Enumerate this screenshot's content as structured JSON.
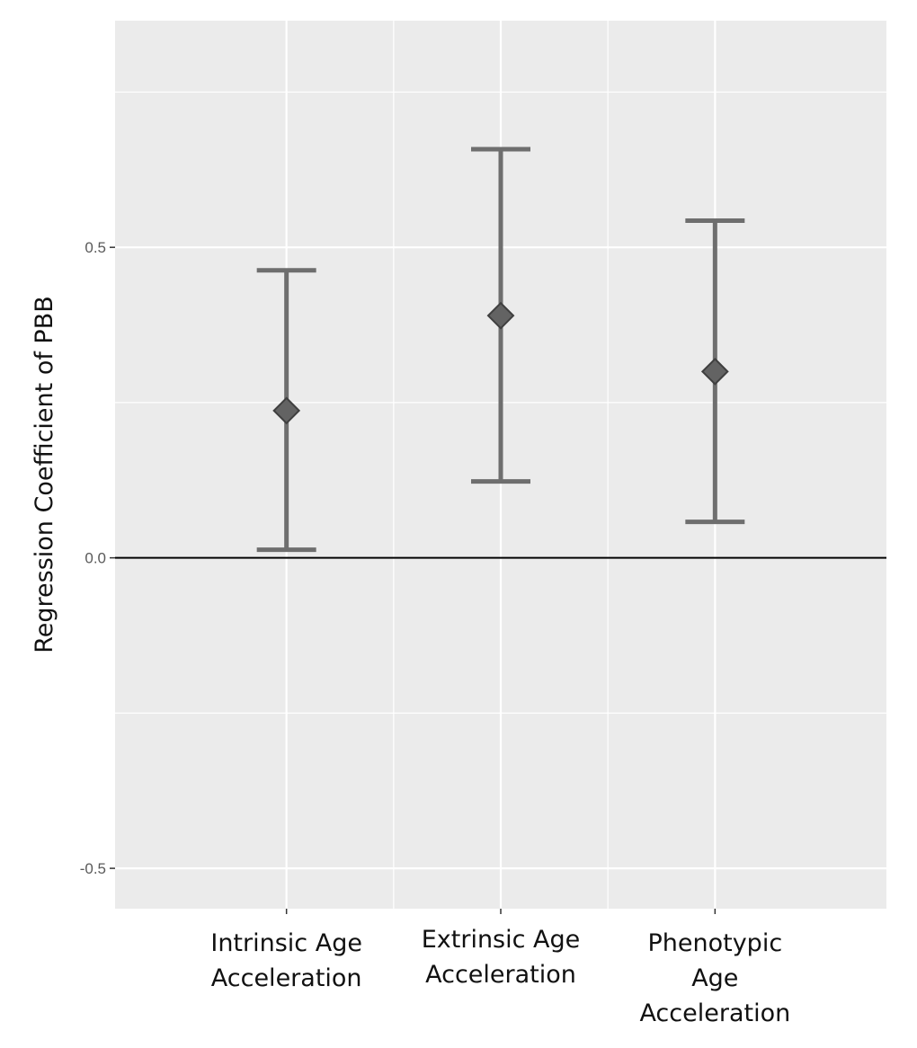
{
  "chart_data": {
    "type": "errorbar",
    "title": "",
    "xlabel": "",
    "ylabel": "Regression Coefficient of PBB",
    "ylim": [
      -0.565,
      0.865
    ],
    "yticks": [
      {
        "value": -0.5,
        "label": "-0.5"
      },
      {
        "value": 0.0,
        "label": "0.0"
      },
      {
        "value": 0.5,
        "label": "0.5"
      }
    ],
    "reference_line": 0.0,
    "grid": true,
    "categories": [
      {
        "lines": [
          "Intrinsic Age",
          "Acceleration"
        ]
      },
      {
        "lines": [
          "Extrinsic Age",
          "Acceleration"
        ]
      },
      {
        "lines": [
          "Phenotypic",
          "Age",
          "Acceleration"
        ]
      }
    ],
    "points": [
      {
        "estimate": 0.237,
        "lower": 0.013,
        "upper": 0.463
      },
      {
        "estimate": 0.39,
        "lower": 0.123,
        "upper": 0.658
      },
      {
        "estimate": 0.3,
        "lower": 0.058,
        "upper": 0.543
      }
    ],
    "colors": {
      "panel": "#ebebeb",
      "grid": "#ffffff",
      "errorbar": "#6e6e6e",
      "marker": "#636363",
      "marker_edge": "#3f3f3f",
      "zero_line": "#000000"
    }
  }
}
